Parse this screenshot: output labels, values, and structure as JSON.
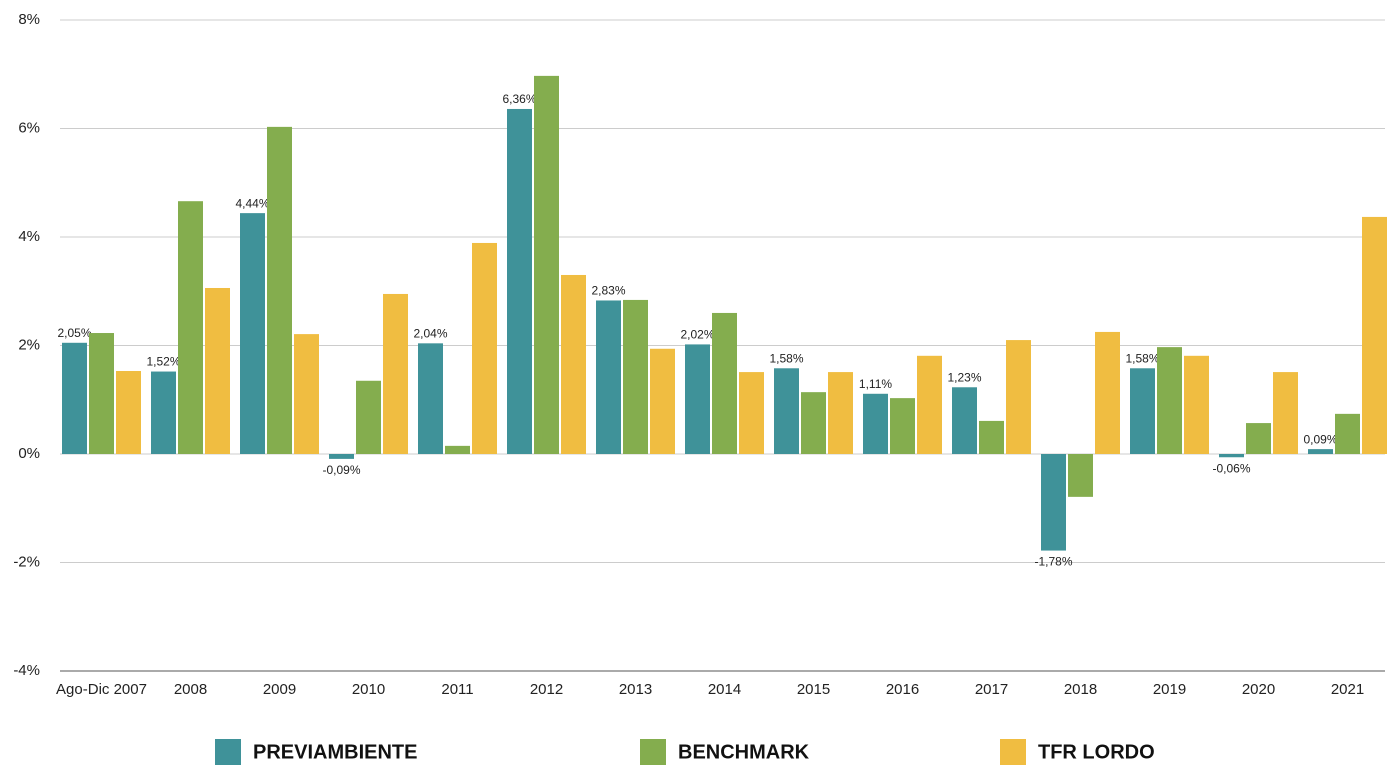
{
  "chart_data": {
    "type": "bar",
    "categories": [
      "Ago-Dic 2007",
      "2008",
      "2009",
      "2010",
      "2011",
      "2012",
      "2013",
      "2014",
      "2015",
      "2016",
      "2017",
      "2018",
      "2019",
      "2020",
      "2021"
    ],
    "series": [
      {
        "name": "PREVIAMBIENTE",
        "color": "#3f9299",
        "values": [
          2.05,
          1.52,
          4.44,
          -0.09,
          2.04,
          6.36,
          2.83,
          2.02,
          1.58,
          1.11,
          1.23,
          -1.78,
          1.58,
          -0.06,
          0.09
        ],
        "value_labels": [
          "2,05%",
          "1,52%",
          "4,44%",
          "-0,09%",
          "2,04%",
          "6,36%",
          "2,83%",
          "2,02%",
          "1,58%",
          "1,11%",
          "1,23%",
          "-1,78%",
          "1,58%",
          "-0,06%",
          "0,09%"
        ]
      },
      {
        "name": "BENCHMARK",
        "color": "#84ad4e",
        "values": [
          2.23,
          4.66,
          6.03,
          1.35,
          0.15,
          6.97,
          2.84,
          2.6,
          1.14,
          1.03,
          0.61,
          -0.79,
          1.97,
          0.57,
          0.74
        ]
      },
      {
        "name": "TFR LORDO",
        "color": "#f0bd41",
        "values": [
          1.53,
          3.06,
          2.21,
          2.95,
          3.89,
          3.3,
          1.94,
          1.51,
          1.51,
          1.81,
          2.1,
          2.25,
          1.81,
          1.51,
          4.37
        ]
      }
    ],
    "ylim": [
      -4,
      8
    ],
    "yticks": [
      {
        "value": -4,
        "label": "-4%"
      },
      {
        "value": -2,
        "label": "-2%"
      },
      {
        "value": 0,
        "label": "0%"
      },
      {
        "value": 2,
        "label": "2%"
      },
      {
        "value": 4,
        "label": "4%"
      },
      {
        "value": 6,
        "label": "6%"
      },
      {
        "value": 8,
        "label": "8%"
      }
    ],
    "grid": true,
    "legend": "bottom"
  }
}
